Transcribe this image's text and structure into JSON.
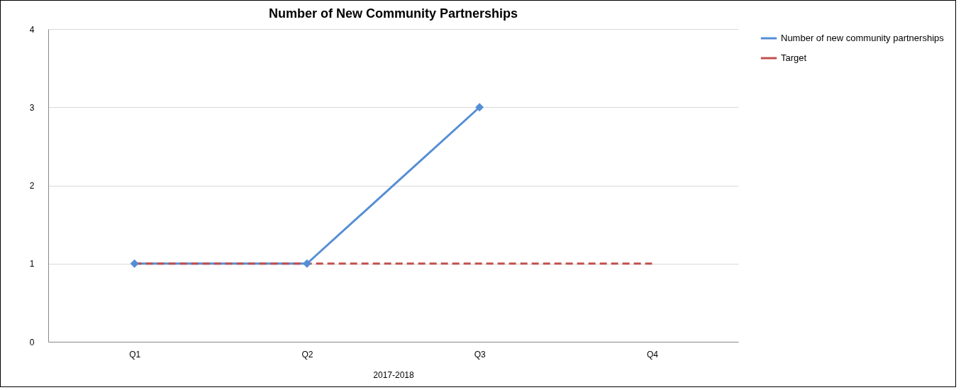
{
  "chart_data": {
    "type": "line",
    "title": "Number of New Community Partnerships",
    "xlabel": "2017-2018",
    "categories": [
      "Q1",
      "Q2",
      "Q3",
      "Q4"
    ],
    "series": [
      {
        "name": "Number of new community partnerships",
        "color": "#558ed5",
        "values": [
          1,
          1,
          3,
          null
        ],
        "marker": "diamond",
        "line_style": "solid"
      },
      {
        "name": "Target",
        "color": "#c0504d",
        "values": [
          1,
          1,
          1,
          1
        ],
        "marker": "none",
        "line_style": "dashed"
      }
    ],
    "ylim": [
      0,
      4
    ],
    "yticks": [
      0,
      1,
      2,
      3,
      4
    ],
    "grid": "y",
    "legend": "right"
  }
}
